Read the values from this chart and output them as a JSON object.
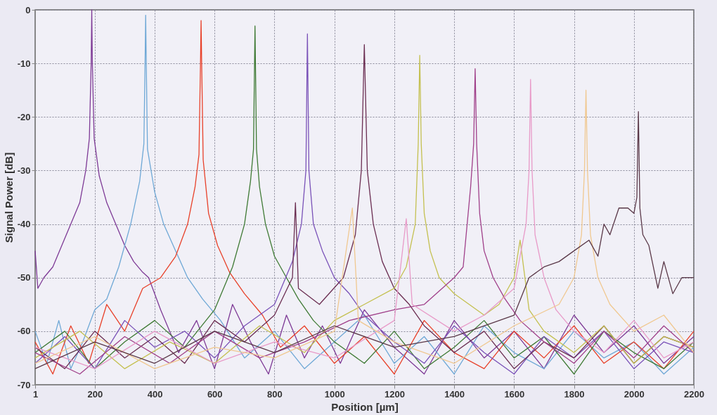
{
  "chart_data": {
    "type": "line",
    "xlabel": "Position [µm]",
    "ylabel": "Signal Power [dB]",
    "xlim": [
      1,
      2200
    ],
    "ylim": [
      -70,
      0
    ],
    "xticks": [
      1,
      200,
      400,
      600,
      800,
      1000,
      1200,
      1400,
      1600,
      1800,
      2000,
      2200
    ],
    "yticks": [
      -70,
      -60,
      -50,
      -40,
      -30,
      -20,
      -10,
      0
    ],
    "grid": true,
    "legend": false,
    "line_style": "solid",
    "marker": "none",
    "series": [
      {
        "color": "#7e3a96",
        "x": [
          1,
          10,
          30,
          60,
          90,
          120,
          150,
          170,
          182,
          188,
          190,
          192,
          198,
          215,
          240,
          270,
          300,
          330,
          360,
          380,
          420,
          480,
          540,
          600,
          660,
          720,
          780,
          840,
          900,
          960,
          1020,
          1100,
          1200,
          1300,
          1400,
          1500,
          1600,
          1700,
          1800,
          1900,
          2000,
          2100,
          2200
        ],
        "values": [
          -45,
          -52,
          -50,
          -48,
          -44,
          -40,
          -36,
          -30,
          -24,
          -10,
          0,
          -10,
          -24,
          -31,
          -36,
          -40,
          -44,
          -47,
          -49,
          -50,
          -56,
          -64,
          -58,
          -67,
          -55,
          -62,
          -68,
          -57,
          -65,
          -59,
          -66,
          -56,
          -63,
          -68,
          -58,
          -65,
          -60,
          -67,
          -57,
          -64,
          -59,
          -66,
          -61
        ]
      },
      {
        "color": "#6fa8d6",
        "x": [
          1,
          40,
          80,
          120,
          160,
          200,
          240,
          280,
          320,
          350,
          364,
          368,
          370,
          372,
          376,
          400,
          430,
          470,
          510,
          560,
          620,
          700,
          800,
          900,
          1000,
          1100,
          1200,
          1300,
          1400,
          1500,
          1600,
          1700,
          1800,
          1900,
          2000,
          2100,
          2200
        ],
        "values": [
          -60,
          -66,
          -58,
          -67,
          -62,
          -56,
          -54,
          -48,
          -40,
          -32,
          -25,
          -10,
          -1,
          -10,
          -26,
          -34,
          -40,
          -45,
          -50,
          -54,
          -58,
          -65,
          -60,
          -67,
          -62,
          -57,
          -66,
          -61,
          -68,
          -59,
          -64,
          -67,
          -60,
          -65,
          -62,
          -68,
          -63
        ]
      },
      {
        "color": "#e8412a",
        "x": [
          1,
          60,
          120,
          180,
          240,
          300,
          360,
          420,
          470,
          510,
          535,
          548,
          553,
          555,
          557,
          562,
          580,
          610,
          650,
          700,
          760,
          820,
          900,
          1000,
          1100,
          1200,
          1300,
          1400,
          1500,
          1600,
          1700,
          1800,
          1900,
          2000,
          2100,
          2200
        ],
        "values": [
          -62,
          -68,
          -59,
          -66,
          -55,
          -60,
          -52,
          -50,
          -46,
          -40,
          -33,
          -27,
          -10,
          -2,
          -10,
          -28,
          -38,
          -44,
          -49,
          -53,
          -57,
          -63,
          -59,
          -66,
          -61,
          -68,
          -58,
          -64,
          -67,
          -60,
          -65,
          -59,
          -66,
          -62,
          -67,
          -60
        ]
      },
      {
        "color": "#3f7a35",
        "x": [
          1,
          100,
          200,
          300,
          400,
          500,
          600,
          660,
          700,
          720,
          730,
          735,
          740,
          750,
          770,
          800,
          840,
          880,
          930,
          1000,
          1100,
          1200,
          1300,
          1400,
          1500,
          1600,
          1700,
          1800,
          1900,
          2000,
          2100,
          2200
        ],
        "values": [
          -64,
          -60,
          -67,
          -62,
          -58,
          -63,
          -56,
          -48,
          -40,
          -32,
          -26,
          -3,
          -26,
          -33,
          -40,
          -46,
          -50,
          -54,
          -58,
          -62,
          -66,
          -60,
          -67,
          -63,
          -58,
          -65,
          -61,
          -68,
          -60,
          -64,
          -67,
          -62
        ]
      },
      {
        "color": "#7a52b8",
        "x": [
          1,
          100,
          200,
          300,
          400,
          500,
          600,
          700,
          800,
          860,
          890,
          905,
          910,
          915,
          930,
          960,
          1000,
          1050,
          1100,
          1200,
          1300,
          1400,
          1500,
          1600,
          1700,
          1800,
          1900,
          2000,
          2100,
          2200
        ],
        "values": [
          -66,
          -61,
          -67,
          -58,
          -63,
          -60,
          -65,
          -59,
          -55,
          -47,
          -40,
          -30,
          -4.5,
          -30,
          -40,
          -45,
          -50,
          -53,
          -57,
          -62,
          -66,
          -59,
          -64,
          -68,
          -61,
          -65,
          -60,
          -67,
          -62,
          -64
        ]
      },
      {
        "color": "#6b2e52",
        "x": [
          1,
          100,
          200,
          300,
          400,
          500,
          600,
          700,
          800,
          860,
          870,
          880,
          950,
          1030,
          1070,
          1090,
          1100,
          1110,
          1130,
          1160,
          1200,
          1250,
          1300,
          1400,
          1500,
          1600,
          1700,
          1800,
          1900,
          2000,
          2100,
          2200
        ],
        "values": [
          -63,
          -67,
          -60,
          -65,
          -61,
          -66,
          -58,
          -62,
          -57,
          -50,
          -36,
          -52,
          -55,
          -50,
          -42,
          -30,
          -6.5,
          -30,
          -40,
          -47,
          -52,
          -55,
          -59,
          -64,
          -60,
          -67,
          -62,
          -65,
          -59,
          -66,
          -61,
          -63
        ]
      },
      {
        "color": "#c4c050",
        "x": [
          1,
          150,
          300,
          450,
          600,
          750,
          900,
          1000,
          1100,
          1200,
          1240,
          1270,
          1280,
          1285,
          1290,
          1300,
          1320,
          1350,
          1400,
          1450,
          1500,
          1550,
          1600,
          1620,
          1650,
          1700,
          1800,
          1900,
          2000,
          2100,
          2200
        ],
        "values": [
          -65,
          -60,
          -67,
          -62,
          -66,
          -59,
          -64,
          -58,
          -55,
          -52,
          -48,
          -40,
          -25,
          -8.5,
          -25,
          -38,
          -45,
          -50,
          -53,
          -55,
          -57,
          -55,
          -50,
          -43,
          -56,
          -60,
          -64,
          -59,
          -66,
          -61,
          -63
        ]
      },
      {
        "color": "#a0408a",
        "x": [
          1,
          150,
          300,
          450,
          600,
          750,
          900,
          1050,
          1200,
          1300,
          1400,
          1430,
          1455,
          1465,
          1470,
          1475,
          1485,
          1500,
          1530,
          1570,
          1620,
          1700,
          1800,
          1900,
          2000,
          2100,
          2200
        ],
        "values": [
          -64,
          -68,
          -61,
          -66,
          -60,
          -65,
          -62,
          -58,
          -56,
          -55,
          -50,
          -48,
          -33,
          -25,
          -11,
          -25,
          -38,
          -45,
          -50,
          -54,
          -58,
          -62,
          -66,
          -60,
          -65,
          -59,
          -64
        ]
      },
      {
        "color": "#e89ac8",
        "x": [
          1,
          200,
          400,
          600,
          800,
          1000,
          1200,
          1240,
          1260,
          1400,
          1500,
          1600,
          1640,
          1650,
          1655,
          1660,
          1670,
          1700,
          1740,
          1800,
          1900,
          2000,
          2100,
          2200
        ],
        "values": [
          -63,
          -67,
          -60,
          -66,
          -62,
          -65,
          -58,
          -39,
          -55,
          -60,
          -57,
          -52,
          -40,
          -30,
          -13,
          -30,
          -42,
          -50,
          -56,
          -60,
          -64,
          -58,
          -65,
          -62
        ]
      },
      {
        "color": "#f0c890",
        "x": [
          1,
          200,
          400,
          600,
          800,
          1000,
          1060,
          1080,
          1200,
          1400,
          1600,
          1750,
          1800,
          1825,
          1835,
          1840,
          1845,
          1855,
          1880,
          1920,
          2000,
          2100,
          2200
        ],
        "values": [
          -66,
          -61,
          -67,
          -63,
          -65,
          -60,
          -37,
          -58,
          -62,
          -66,
          -59,
          -55,
          -50,
          -42,
          -30,
          -15,
          -30,
          -42,
          -50,
          -55,
          -60,
          -57,
          -64
        ]
      },
      {
        "color": "#5a3848",
        "x": [
          1,
          200,
          400,
          600,
          800,
          1000,
          1200,
          1400,
          1600,
          1650,
          1700,
          1750,
          1800,
          1850,
          1880,
          1900,
          1920,
          1950,
          1980,
          2000,
          2010,
          2015,
          2020,
          2030,
          2050,
          2080,
          2100,
          2130,
          2160,
          2200
        ],
        "values": [
          -67,
          -62,
          -66,
          -60,
          -64,
          -59,
          -63,
          -61,
          -57,
          -50,
          -48,
          -47,
          -45,
          -43,
          -46,
          -40,
          -42,
          -37,
          -37,
          -38,
          -35,
          -19,
          -37,
          -42,
          -44,
          -52,
          -47,
          -53,
          -50,
          -50
        ]
      }
    ]
  }
}
